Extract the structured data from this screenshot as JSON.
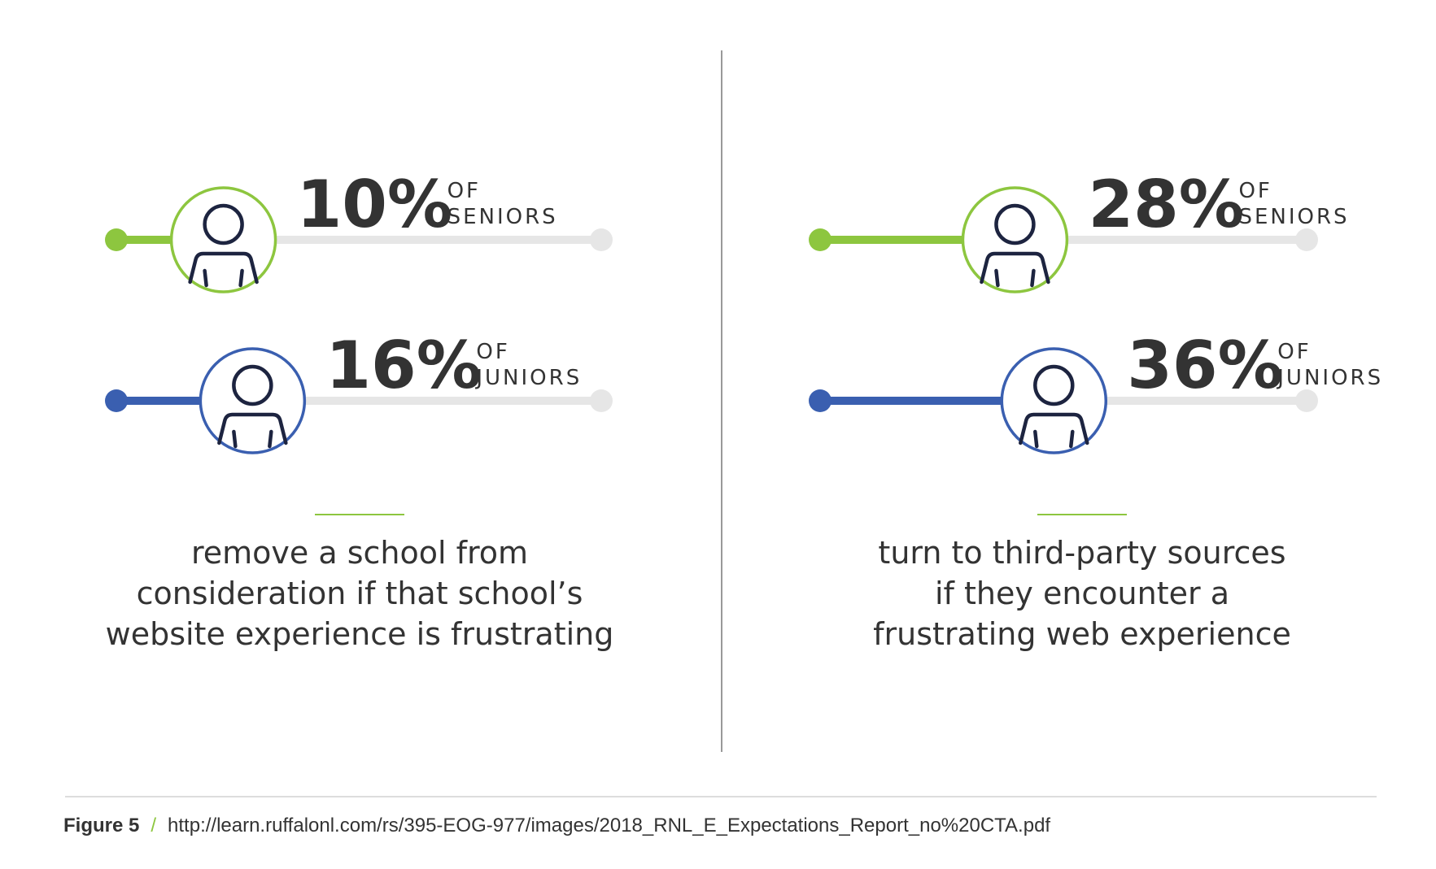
{
  "colors": {
    "seniors": "#8dc63f",
    "juniors": "#3a5fb0",
    "track": "#e6e6e6",
    "text": "#333333",
    "divider": "#999999"
  },
  "icon": "person-icon",
  "chart_data": [
    {
      "type": "bar",
      "orientation": "horizontal",
      "xlim": [
        0,
        100
      ],
      "series": [
        {
          "name": "OF SENIORS",
          "group_line1": "OF",
          "group_line2": "SENIORS",
          "value": 10,
          "label": "10%",
          "color": "#8dc63f"
        },
        {
          "name": "OF JUNIORS",
          "group_line1": "OF",
          "group_line2": "JUNIORS",
          "value": 16,
          "label": "16%",
          "color": "#3a5fb0"
        }
      ],
      "description_lines": [
        "remove a school from",
        "consideration if that school’s",
        "website experience is frustrating"
      ]
    },
    {
      "type": "bar",
      "orientation": "horizontal",
      "xlim": [
        0,
        100
      ],
      "series": [
        {
          "name": "OF SENIORS",
          "group_line1": "OF",
          "group_line2": "SENIORS",
          "value": 28,
          "label": "28%",
          "color": "#8dc63f"
        },
        {
          "name": "OF JUNIORS",
          "group_line1": "OF",
          "group_line2": "JUNIORS",
          "value": 36,
          "label": "36%",
          "color": "#3a5fb0"
        }
      ],
      "description_lines": [
        "turn to third-party sources",
        "if they encounter a",
        "frustrating web experience"
      ]
    }
  ],
  "caption": {
    "label": "Figure 5",
    "separator": "/",
    "url": "http://learn.ruffalonl.com/rs/395-EOG-977/images/2018_RNL_E_Expectations_Report_no%20CTA.pdf"
  }
}
